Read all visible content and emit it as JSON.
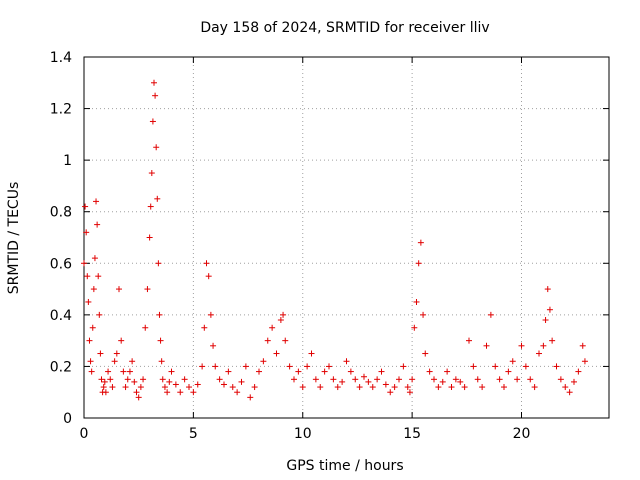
{
  "chart_data": {
    "type": "scatter",
    "title": "Day 158 of 2024, SRMTID for receiver lliv",
    "xlabel": "GPS time / hours",
    "ylabel": "SRMTID / TECUs",
    "xlim": [
      0,
      24
    ],
    "ylim": [
      0,
      1.4
    ],
    "xticks": [
      0,
      5,
      10,
      15,
      20
    ],
    "yticks": [
      0,
      0.2,
      0.4,
      0.6,
      0.8,
      1,
      1.2,
      1.4
    ],
    "xtick_labels": [
      "0",
      "5",
      "10",
      "15",
      "20"
    ],
    "ytick_labels": [
      "0",
      "0.2",
      "0.4",
      "0.6",
      "0.8",
      "1",
      "1.2",
      "1.4"
    ],
    "grid": true,
    "marker": "plus",
    "series_color": "#e00000",
    "series": [
      {
        "name": "SRMTID",
        "x": [
          0.0,
          0.05,
          0.1,
          0.15,
          0.2,
          0.25,
          0.3,
          0.35,
          0.4,
          0.45,
          0.5,
          0.55,
          0.6,
          0.65,
          0.7,
          0.75,
          0.8,
          0.85,
          0.9,
          0.95,
          1.0,
          1.1,
          1.2,
          1.3,
          1.4,
          1.5,
          1.6,
          1.7,
          1.8,
          1.9,
          2.0,
          2.1,
          2.2,
          2.3,
          2.4,
          2.5,
          2.6,
          2.7,
          2.8,
          2.9,
          3.0,
          3.05,
          3.1,
          3.15,
          3.2,
          3.25,
          3.3,
          3.35,
          3.4,
          3.45,
          3.5,
          3.55,
          3.6,
          3.7,
          3.8,
          3.9,
          4.0,
          4.2,
          4.4,
          4.6,
          4.8,
          5.0,
          5.2,
          5.4,
          5.5,
          5.6,
          5.7,
          5.8,
          5.9,
          6.0,
          6.2,
          6.4,
          6.6,
          6.8,
          7.0,
          7.2,
          7.4,
          7.6,
          7.8,
          8.0,
          8.2,
          8.4,
          8.6,
          8.8,
          9.0,
          9.1,
          9.2,
          9.4,
          9.6,
          9.8,
          10.0,
          10.2,
          10.4,
          10.6,
          10.8,
          11.0,
          11.2,
          11.4,
          11.6,
          11.8,
          12.0,
          12.2,
          12.4,
          12.6,
          12.8,
          13.0,
          13.2,
          13.4,
          13.6,
          13.8,
          14.0,
          14.2,
          14.4,
          14.6,
          14.8,
          14.9,
          15.0,
          15.1,
          15.2,
          15.3,
          15.4,
          15.5,
          15.6,
          15.8,
          16.0,
          16.2,
          16.4,
          16.6,
          16.8,
          17.0,
          17.2,
          17.4,
          17.6,
          17.8,
          18.0,
          18.2,
          18.4,
          18.6,
          18.8,
          19.0,
          19.2,
          19.4,
          19.6,
          19.8,
          20.0,
          20.2,
          20.4,
          20.6,
          20.8,
          21.0,
          21.1,
          21.2,
          21.3,
          21.4,
          21.6,
          21.8,
          22.0,
          22.2,
          22.4,
          22.6,
          22.8,
          22.9
        ],
        "y": [
          0.6,
          0.82,
          0.72,
          0.55,
          0.45,
          0.3,
          0.22,
          0.18,
          0.35,
          0.5,
          0.62,
          0.84,
          0.75,
          0.55,
          0.4,
          0.25,
          0.15,
          0.1,
          0.12,
          0.14,
          0.1,
          0.18,
          0.15,
          0.12,
          0.22,
          0.25,
          0.5,
          0.3,
          0.18,
          0.12,
          0.15,
          0.18,
          0.22,
          0.14,
          0.1,
          0.08,
          0.12,
          0.15,
          0.35,
          0.5,
          0.7,
          0.82,
          0.95,
          1.15,
          1.3,
          1.25,
          1.05,
          0.85,
          0.6,
          0.4,
          0.3,
          0.22,
          0.15,
          0.12,
          0.1,
          0.14,
          0.18,
          0.13,
          0.1,
          0.15,
          0.12,
          0.1,
          0.13,
          0.2,
          0.35,
          0.6,
          0.55,
          0.4,
          0.28,
          0.2,
          0.15,
          0.13,
          0.18,
          0.12,
          0.1,
          0.14,
          0.2,
          0.08,
          0.12,
          0.18,
          0.22,
          0.3,
          0.35,
          0.25,
          0.38,
          0.4,
          0.3,
          0.2,
          0.15,
          0.18,
          0.12,
          0.2,
          0.25,
          0.15,
          0.12,
          0.18,
          0.2,
          0.15,
          0.12,
          0.14,
          0.22,
          0.18,
          0.15,
          0.12,
          0.16,
          0.14,
          0.12,
          0.15,
          0.18,
          0.13,
          0.1,
          0.12,
          0.15,
          0.2,
          0.12,
          0.1,
          0.15,
          0.35,
          0.45,
          0.6,
          0.68,
          0.4,
          0.25,
          0.18,
          0.15,
          0.12,
          0.14,
          0.18,
          0.12,
          0.15,
          0.14,
          0.12,
          0.3,
          0.2,
          0.15,
          0.12,
          0.28,
          0.4,
          0.2,
          0.15,
          0.12,
          0.18,
          0.22,
          0.15,
          0.28,
          0.2,
          0.15,
          0.12,
          0.25,
          0.28,
          0.38,
          0.5,
          0.42,
          0.3,
          0.2,
          0.15,
          0.12,
          0.1,
          0.14,
          0.18,
          0.28,
          0.22
        ]
      }
    ]
  }
}
